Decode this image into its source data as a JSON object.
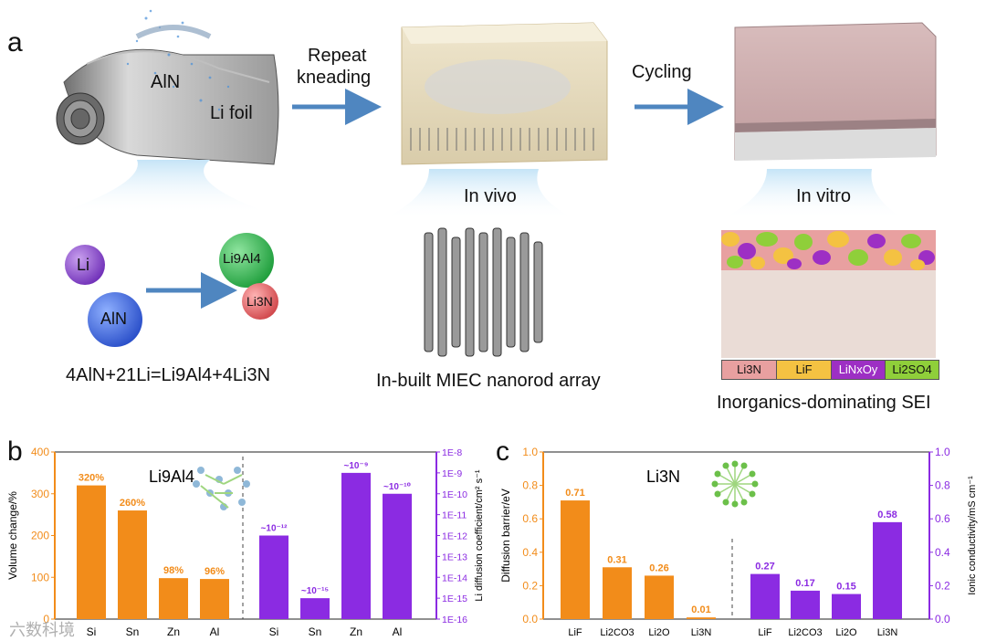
{
  "panel_a": {
    "letter": "a",
    "aln_label": "AlN",
    "li_foil_label": "Li foil",
    "arrow1_line1": "Repeat",
    "arrow1_line2": "kneading",
    "arrow2_label": "Cycling",
    "in_vivo": "In vivo",
    "in_vitro": "In vitro",
    "reactant_li": "Li",
    "reactant_aln": "AlN",
    "product_li9al4": "Li9Al4",
    "product_li3n": "Li3N",
    "equation": "4AlN+21Li=Li9Al4+4Li3N",
    "miec_caption": "In-built MIEC nanorod array",
    "sei_caption": "Inorganics-dominating SEI",
    "sei_legend": [
      "Li3N",
      "LiF",
      "LiNxOy",
      "Li2SO4"
    ],
    "colors": {
      "li3n": "#e8a0a0",
      "lif": "#f4c242",
      "linxoy": "#9d2fc4",
      "li2so4": "#8fcf3a",
      "arrow": "#4f86c0",
      "li_ball": "#8a4fc7",
      "aln_ball": "#3f6ee0",
      "li9al4_ball": "#3cb85a",
      "li3n_ball": "#e06060"
    }
  },
  "chart_data": [
    {
      "type": "bar",
      "panel": "b",
      "title": "Li9Al4",
      "left_axis": {
        "label": "Volume change/%",
        "ylim": [
          0,
          400
        ],
        "ticks": [
          "0",
          "100",
          "200",
          "300",
          "400"
        ],
        "color": "#f28c1a"
      },
      "right_axis": {
        "label": "Li diffusion coefficient/cm² s⁻¹",
        "ticks": [
          "1E-16",
          "1E-15",
          "1E-14",
          "1E-13",
          "1E-12",
          "1E-11",
          "1E-10",
          "1E-9",
          "1E-8"
        ],
        "color": "#8b2be2"
      },
      "series": [
        {
          "name": "Volume change",
          "categories": [
            "Si",
            "Sn",
            "Zn",
            "Al"
          ],
          "values": [
            320,
            260,
            98,
            96
          ],
          "labels": [
            "320%",
            "260%",
            "98%",
            "96%"
          ]
        },
        {
          "name": "Li diffusion coefficient",
          "categories": [
            "Si",
            "Sn",
            "Zn",
            "Al"
          ],
          "log10_values": [
            -12,
            -15,
            -9,
            -10
          ],
          "labels": [
            "~10⁻¹²",
            "~10⁻¹⁵",
            "~10⁻⁹",
            "~10⁻¹⁰"
          ]
        }
      ]
    },
    {
      "type": "bar",
      "panel": "c",
      "title": "Li3N",
      "left_axis": {
        "label": "Diffusion barrier/eV",
        "ylim": [
          0,
          1.0
        ],
        "ticks": [
          "0.0",
          "0.2",
          "0.4",
          "0.6",
          "0.8",
          "1.0"
        ],
        "color": "#f28c1a"
      },
      "right_axis": {
        "label": "Ionic conductivity/mS cm⁻¹",
        "ylim": [
          0,
          1.0
        ],
        "ticks": [
          "0.0",
          "0.2",
          "0.4",
          "0.6",
          "0.8",
          "1.0"
        ],
        "color": "#8b2be2"
      },
      "series": [
        {
          "name": "Diffusion barrier",
          "categories": [
            "LiF",
            "Li2CO3",
            "Li2O",
            "Li3N"
          ],
          "values": [
            0.71,
            0.31,
            0.26,
            0.01
          ],
          "labels": [
            "0.71",
            "0.31",
            "0.26",
            "0.01"
          ]
        },
        {
          "name": "Ionic conductivity",
          "categories": [
            "LiF",
            "Li2CO3",
            "Li2O",
            "Li3N"
          ],
          "values": [
            0.27,
            0.17,
            0.15,
            0.58
          ],
          "labels": [
            "0.27",
            "0.17",
            "0.15",
            "0.58"
          ]
        }
      ]
    }
  ],
  "panel_b_letter": "b",
  "panel_c_letter": "c",
  "watermark": "六数科境"
}
